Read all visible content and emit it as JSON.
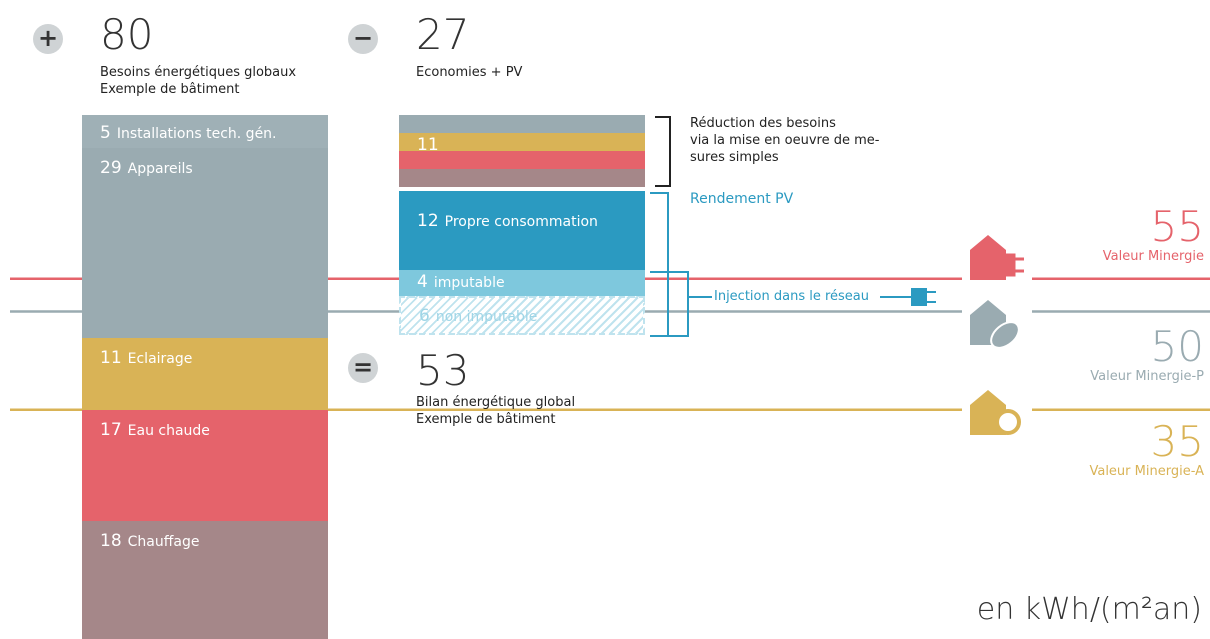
{
  "left": {
    "sign": "+",
    "total": 80,
    "title": "Besoins énergétiques globaux",
    "subtitle": "Exemple de bâtiment",
    "segments": [
      {
        "value": 5,
        "label": "Installations tech. gén.",
        "color": "#9fb0b6"
      },
      {
        "value": 29,
        "label": "Appareils",
        "color": "#9aabb1"
      },
      {
        "value": 11,
        "label": "Eclairage",
        "color": "#d9b356"
      },
      {
        "value": 17,
        "label": "Eau chaude",
        "color": "#e5636b"
      },
      {
        "value": 18,
        "label": "Chauffage",
        "color": "#a58789"
      }
    ]
  },
  "middle": {
    "sign": "−",
    "total": 27,
    "title": "Economies + PV",
    "reduction": {
      "value": 11,
      "colors": [
        "#9aabb1",
        "#d9b356",
        "#e5636b",
        "#a58789"
      ],
      "note": [
        "Réduction des besoins",
        "via la mise en oeuvre de me-",
        "sures simples"
      ]
    },
    "pv_title": "Rendement PV",
    "pv": [
      {
        "value": 12,
        "label": "Propre consommation",
        "color": "#2b9ac1"
      },
      {
        "value": 4,
        "label": "imputable",
        "color": "#7ec8dd"
      },
      {
        "value": 6,
        "label": "non imputable",
        "color": "hatch"
      }
    ],
    "injection": "Injection dans le réseau"
  },
  "result": {
    "sign": "=",
    "total": 53,
    "title": "Bilan énergétique global",
    "subtitle": "Exemple de bâtiment"
  },
  "standards": [
    {
      "value": 55,
      "label": "Valeur Minergie",
      "color": "#e5636b"
    },
    {
      "value": 50,
      "label": "Valeur Minergie-P",
      "color": "#9aabb1"
    },
    {
      "value": 35,
      "label": "Valeur Minergie-A",
      "color": "#d9b356"
    }
  ],
  "unit": "en kWh/(m²an)"
}
